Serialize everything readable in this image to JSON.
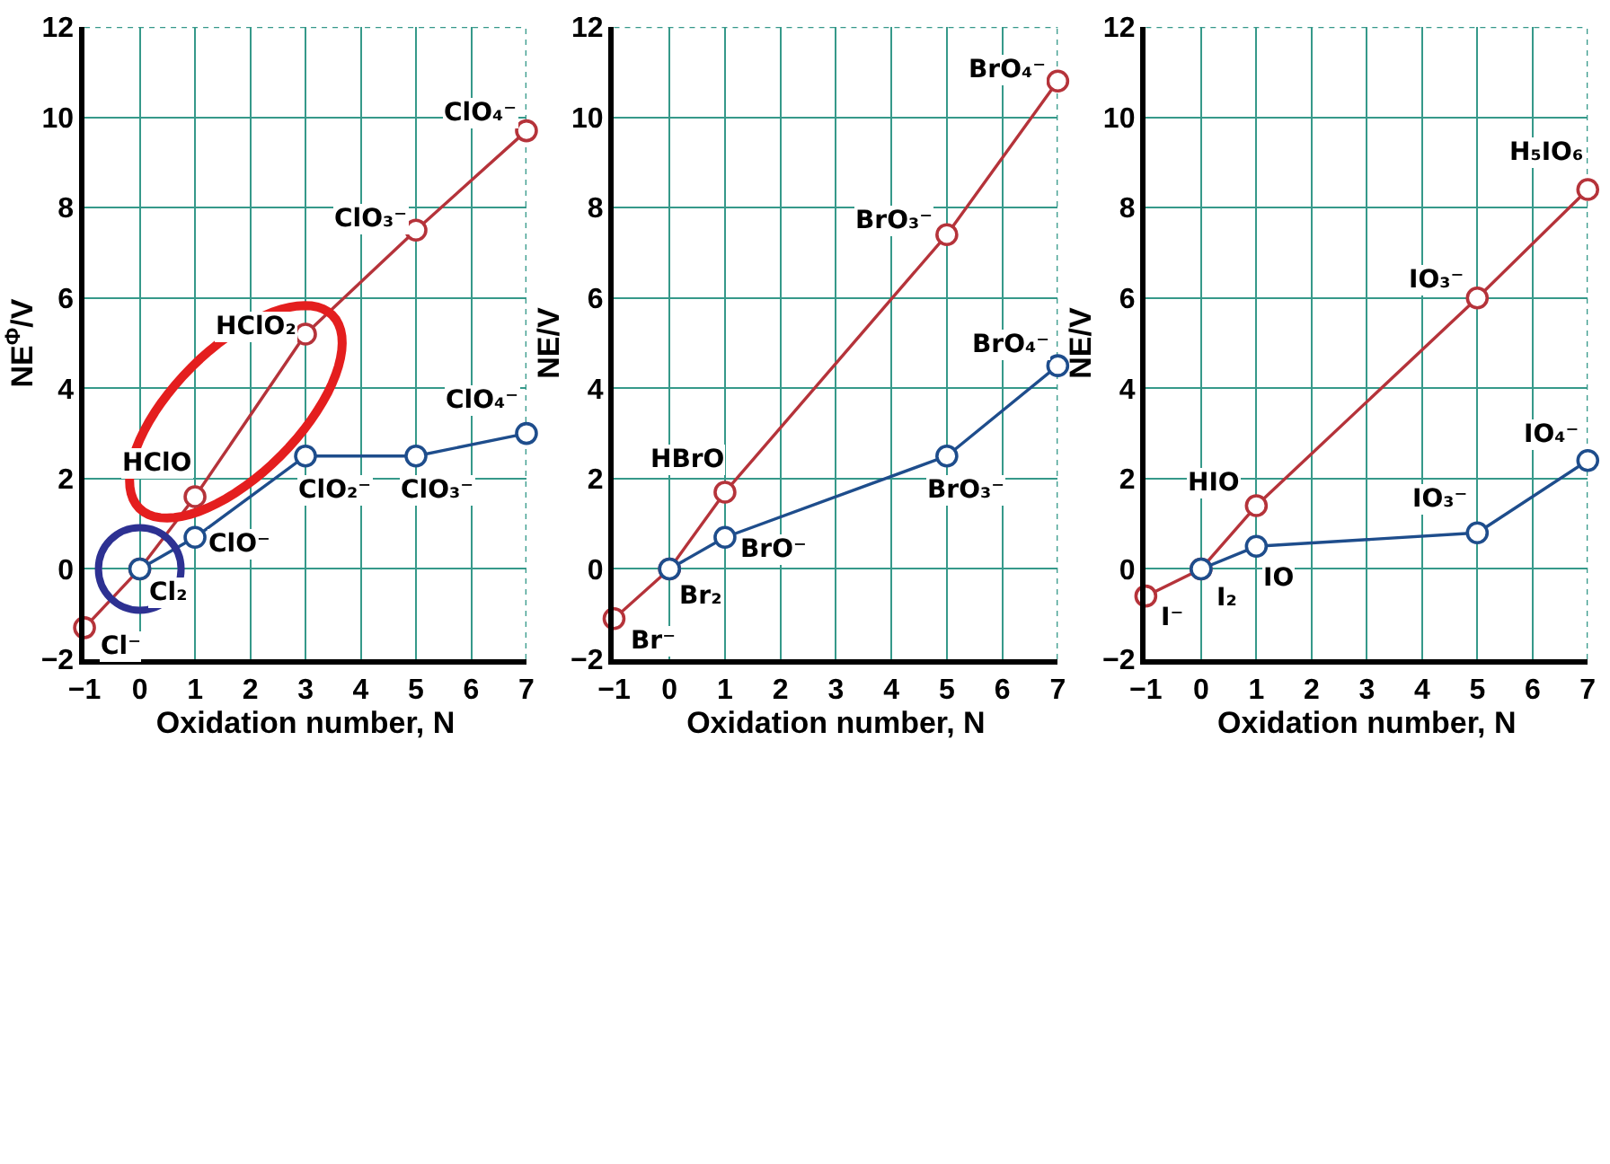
{
  "chart_data": [
    {
      "type": "line",
      "xlabel": "Oxidation number, N",
      "ylabel": "NE$^{Φ}$/V",
      "xlim": [
        -1,
        7
      ],
      "ylim": [
        -2,
        12
      ],
      "xticks": [
        -1,
        0,
        1,
        2,
        3,
        4,
        5,
        6,
        7
      ],
      "yticks": [
        -2,
        0,
        2,
        4,
        6,
        8,
        10,
        12
      ],
      "grid": true,
      "marker": "circle",
      "line_style": "solid",
      "series": [
        {
          "color": "#b5333a",
          "x": [
            -1,
            0,
            1,
            3,
            5,
            7
          ],
          "values": [
            -1.3,
            0,
            1.6,
            5.2,
            7.5,
            9.7
          ]
        },
        {
          "color": "#1e4d8c",
          "x": [
            0,
            1,
            3,
            5,
            7
          ],
          "values": [
            0,
            0.7,
            2.5,
            2.5,
            3.0
          ]
        }
      ],
      "annotations": [
        {
          "text": "Cl⁻",
          "x": -1,
          "y": -1.3
        },
        {
          "text": "Cl₂",
          "x": 0,
          "y": 0
        },
        {
          "text": "HClO",
          "x": 1,
          "y": 1.6
        },
        {
          "text": "HClO₂",
          "x": 3,
          "y": 5.2
        },
        {
          "text": "ClO₃⁻",
          "x": 5,
          "y": 7.5
        },
        {
          "text": "ClO₄⁻",
          "x": 7,
          "y": 9.7
        },
        {
          "text": "ClO⁻",
          "x": 1,
          "y": 0.7
        },
        {
          "text": "ClO₂⁻",
          "x": 3,
          "y": 2.5
        },
        {
          "text": "ClO₃⁻",
          "x": 5,
          "y": 2.5
        },
        {
          "text": "ClO₄⁻",
          "x": 7,
          "y": 3.0
        }
      ]
    },
    {
      "type": "line",
      "xlabel": "Oxidation number, N",
      "ylabel": "NE/V",
      "xlim": [
        -1,
        7
      ],
      "ylim": [
        -2,
        12
      ],
      "xticks": [
        -1,
        0,
        1,
        2,
        3,
        4,
        5,
        6,
        7
      ],
      "yticks": [
        -2,
        0,
        2,
        4,
        6,
        8,
        10,
        12
      ],
      "grid": true,
      "marker": "circle",
      "line_style": "solid",
      "series": [
        {
          "color": "#b5333a",
          "x": [
            -1,
            0,
            1,
            5,
            7
          ],
          "values": [
            -1.1,
            0,
            1.7,
            7.4,
            10.8
          ]
        },
        {
          "color": "#1e4d8c",
          "x": [
            0,
            1,
            5,
            7
          ],
          "values": [
            0,
            0.7,
            2.5,
            4.5
          ]
        }
      ],
      "annotations": [
        {
          "text": "Br⁻",
          "x": -1,
          "y": -1.1
        },
        {
          "text": "Br₂",
          "x": 0,
          "y": 0
        },
        {
          "text": "HBrO",
          "x": 1,
          "y": 1.7
        },
        {
          "text": "BrO₃⁻",
          "x": 5,
          "y": 7.4
        },
        {
          "text": "BrO₄⁻",
          "x": 7,
          "y": 10.8
        },
        {
          "text": "BrO⁻",
          "x": 1,
          "y": 0.7
        },
        {
          "text": "BrO₃⁻",
          "x": 5,
          "y": 2.5
        },
        {
          "text": "BrO₄⁻",
          "x": 7,
          "y": 4.5
        }
      ]
    },
    {
      "type": "line",
      "xlabel": "Oxidation number, N",
      "ylabel": "NE/V",
      "xlim": [
        -1,
        7
      ],
      "ylim": [
        -2,
        12
      ],
      "xticks": [
        -1,
        0,
        1,
        2,
        3,
        4,
        5,
        6,
        7
      ],
      "yticks": [
        -2,
        0,
        2,
        4,
        6,
        8,
        10,
        12
      ],
      "grid": true,
      "marker": "circle",
      "line_style": "solid",
      "series": [
        {
          "color": "#b5333a",
          "x": [
            -1,
            0,
            1,
            5,
            7
          ],
          "values": [
            -0.6,
            0,
            1.4,
            6.0,
            8.4
          ]
        },
        {
          "color": "#1e4d8c",
          "x": [
            0,
            1,
            5,
            7
          ],
          "values": [
            0,
            0.5,
            0.8,
            2.4
          ]
        }
      ],
      "annotations": [
        {
          "text": "I⁻",
          "x": -1,
          "y": -0.6
        },
        {
          "text": "I₂",
          "x": 0,
          "y": 0
        },
        {
          "text": "HIO",
          "x": 1,
          "y": 1.4
        },
        {
          "text": "IO₃⁻",
          "x": 5,
          "y": 6.0
        },
        {
          "text": "H₅IO₆",
          "x": 7,
          "y": 8.4
        },
        {
          "text": "IO",
          "x": 1,
          "y": 0.5
        },
        {
          "text": "IO₃⁻",
          "x": 5,
          "y": 0.8
        },
        {
          "text": "IO₄⁻",
          "x": 7,
          "y": 2.4
        }
      ]
    }
  ]
}
